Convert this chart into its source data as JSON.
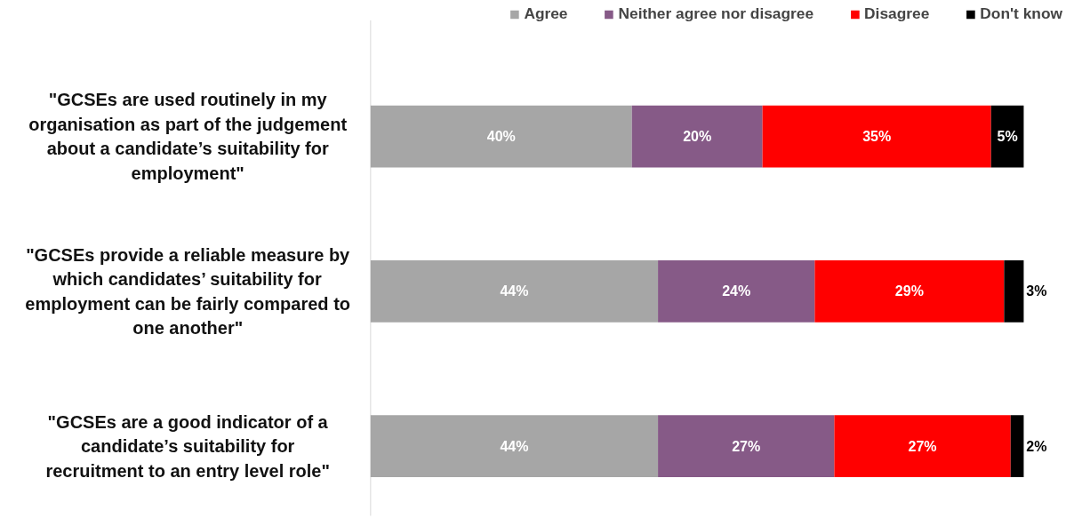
{
  "chart_data": {
    "type": "bar",
    "orientation": "horizontal",
    "stacked": true,
    "legend": "top right",
    "grid": false,
    "categories": [
      "\"GCSEs are used routinely in my organisation as part of the judgement about a candidate’s suitability for employment\"",
      "\"GCSEs provide a reliable measure by which candidates’ suitability for employment can be fairly compared to one another\"",
      "\"GCSEs are a good indicator of a candidate’s suitability for recruitment to an entry level role\""
    ],
    "series": [
      {
        "name": "Agree",
        "color": "#a6a6a6",
        "values": [
          40,
          44,
          44
        ],
        "value_labels": [
          "40%",
          "44%",
          "44%"
        ]
      },
      {
        "name": "Neither agree nor disagree",
        "color": "#865a87",
        "values": [
          20,
          24,
          27
        ],
        "value_labels": [
          "20%",
          "24%",
          "27%"
        ]
      },
      {
        "name": "Disagree",
        "color": "#ff0000",
        "values": [
          35,
          29,
          27
        ],
        "value_labels": [
          "35%",
          "29%",
          "27%"
        ]
      },
      {
        "name": "Don't know",
        "color": "#000000",
        "values": [
          5,
          3,
          2
        ],
        "value_labels": [
          "5%",
          "3%",
          "2%"
        ]
      }
    ]
  }
}
